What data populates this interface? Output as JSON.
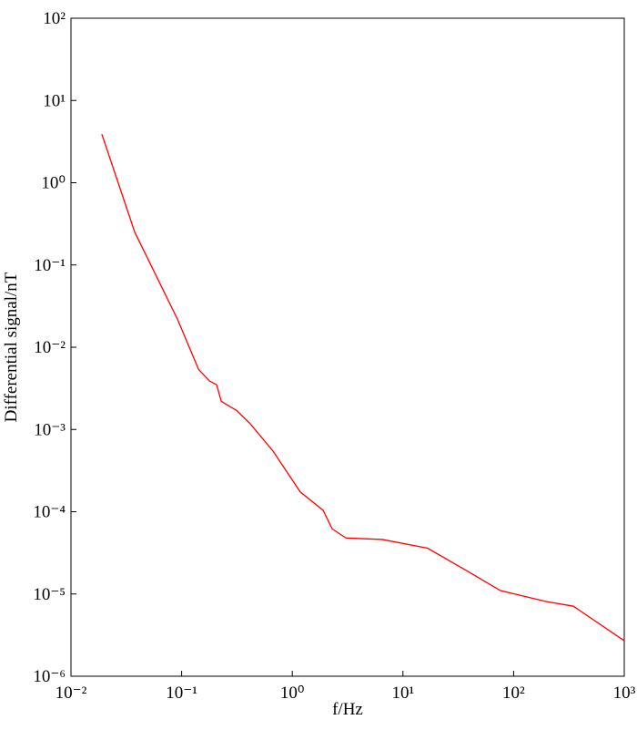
{
  "chart_data": {
    "type": "line",
    "xlabel": "f/Hz",
    "ylabel": "Differential signal/nT",
    "xscale": "log",
    "yscale": "log",
    "xlim": [
      0.01,
      1000
    ],
    "ylim": [
      1e-06,
      100
    ],
    "xticks": [
      {
        "value": 0.01,
        "label": "10⁻²"
      },
      {
        "value": 0.1,
        "label": "10⁻¹"
      },
      {
        "value": 1,
        "label": "10⁰"
      },
      {
        "value": 10,
        "label": "10¹"
      },
      {
        "value": 100,
        "label": "10²"
      },
      {
        "value": 1000,
        "label": "10³"
      }
    ],
    "yticks": [
      {
        "value": 1e-06,
        "label": "10⁻⁶"
      },
      {
        "value": 1e-05,
        "label": "10⁻⁵"
      },
      {
        "value": 0.0001,
        "label": "10⁻⁴"
      },
      {
        "value": 0.001,
        "label": "10⁻³"
      },
      {
        "value": 0.01,
        "label": "10⁻²"
      },
      {
        "value": 0.1,
        "label": "10⁻¹"
      },
      {
        "value": 1,
        "label": "10⁰"
      },
      {
        "value": 10,
        "label": "10¹"
      },
      {
        "value": 100,
        "label": "10²"
      }
    ],
    "series": [
      {
        "color": "#ff0000",
        "x": [
          0.019,
          0.0377,
          0.0916,
          0.142,
          0.178,
          0.207,
          0.228,
          0.314,
          0.417,
          0.67,
          1.18,
          1.9,
          2.29,
          3.05,
          6.5,
          16.7,
          35.7,
          76,
          196,
          347,
          1000
        ],
        "values": [
          3.9,
          0.25,
          0.022,
          0.0054,
          0.0039,
          0.0035,
          0.0022,
          0.0017,
          0.00117,
          0.000546,
          0.000174,
          0.000104,
          6.2e-05,
          4.8e-05,
          4.6e-05,
          3.6e-05,
          2e-05,
          1.1e-05,
          8.1e-06,
          7.1e-06,
          2.7e-06
        ]
      }
    ]
  }
}
